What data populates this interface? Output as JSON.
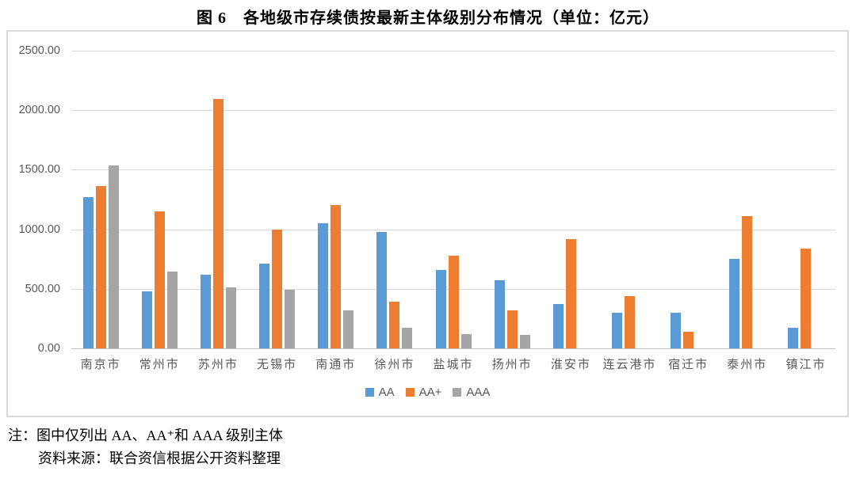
{
  "chart_data": {
    "type": "bar",
    "title": "图 6　各地级市存续债按最新主体级别分布情况（单位：亿元）",
    "unit": "亿元",
    "categories": [
      "南京市",
      "常州市",
      "苏州市",
      "无锡市",
      "南通市",
      "徐州市",
      "盐城市",
      "扬州市",
      "淮安市",
      "连云港市",
      "宿迁市",
      "泰州市",
      "镇江市"
    ],
    "series": [
      {
        "name": "AA",
        "color": "#5B9BD5",
        "values": [
          1270,
          480,
          620,
          710,
          1050,
          975,
          660,
          570,
          370,
          300,
          300,
          750,
          175
        ]
      },
      {
        "name": "AA+",
        "color": "#ED7D31",
        "values": [
          1360,
          1150,
          2095,
          1000,
          1205,
          390,
          780,
          320,
          920,
          440,
          140,
          1110,
          840
        ]
      },
      {
        "name": "AAA",
        "color": "#A5A5A5",
        "values": [
          1535,
          645,
          515,
          490,
          320,
          175,
          120,
          115,
          0,
          0,
          0,
          0,
          0
        ]
      }
    ],
    "ylim": [
      0,
      2500
    ],
    "y_ticks": [
      "2500.00",
      "2000.00",
      "1500.00",
      "1000.00",
      "500.00",
      "0.00"
    ],
    "grid": true,
    "legend_position": "bottom",
    "legend_labels": [
      "AA",
      "AA+",
      "AAA"
    ]
  },
  "notes": {
    "line1": "注：图中仅列出 AA、AA⁺和 AAA 级别主体",
    "line2": "资料来源：联合资信根据公开资料整理"
  },
  "colors": {
    "aa": "#5B9BD5",
    "aa_plus": "#ED7D31",
    "aaa": "#A5A5A5",
    "gridline": "#D9D9D9",
    "axis_text": "#595959",
    "frame_border": "#D9D9D9"
  }
}
